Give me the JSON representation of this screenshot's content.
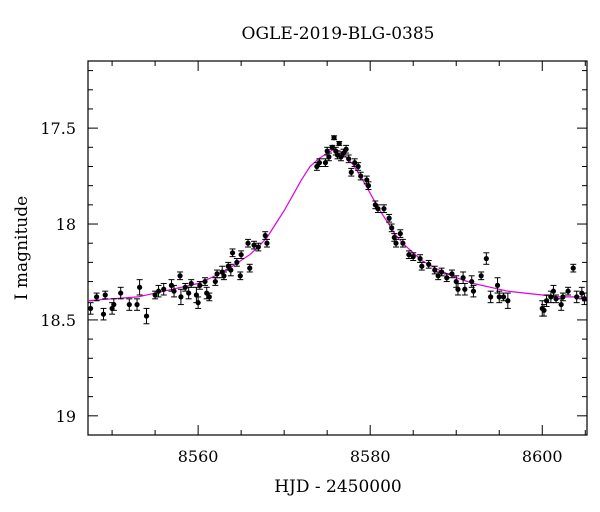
{
  "chart_data": {
    "type": "scatter",
    "title": "OGLE-2019-BLG-0385",
    "xlabel": "HJD - 2450000",
    "ylabel": "I magnitude",
    "xlim": [
      8547.2,
      8605.2
    ],
    "ylim": [
      19.1,
      17.15
    ],
    "y_inverted": true,
    "x_ticks": [
      8560,
      8580,
      8600
    ],
    "x_tick_labels": [
      "8560",
      "8580",
      "8600"
    ],
    "y_ticks": [
      17.5,
      18,
      18.5,
      19
    ],
    "y_tick_labels": [
      "17.5",
      "18",
      "18.5",
      "19"
    ],
    "grid": false,
    "legend": "none",
    "colors": {
      "data": "#000000",
      "model": "#e000e0"
    },
    "series": [
      {
        "kind": "points_with_errorbars",
        "points": [
          [
            8547.5,
            18.44,
            0.03
          ],
          [
            8548.2,
            18.38,
            0.02
          ],
          [
            8549.0,
            18.47,
            0.03
          ],
          [
            8549.2,
            18.37,
            0.02
          ],
          [
            8550.0,
            18.44,
            0.03
          ],
          [
            8550.2,
            18.42,
            0.03
          ],
          [
            8551.0,
            18.36,
            0.03
          ],
          [
            8552.0,
            18.42,
            0.03
          ],
          [
            8552.9,
            18.42,
            0.03
          ],
          [
            8553.2,
            18.33,
            0.04
          ],
          [
            8554.0,
            18.48,
            0.04
          ],
          [
            8555.0,
            18.37,
            0.02
          ],
          [
            8555.4,
            18.35,
            0.03
          ],
          [
            8556.0,
            18.34,
            0.03
          ],
          [
            8556.9,
            18.32,
            0.03
          ],
          [
            8557.2,
            18.35,
            0.03
          ],
          [
            8557.9,
            18.27,
            0.02
          ],
          [
            8558.0,
            18.38,
            0.04
          ],
          [
            8558.5,
            18.33,
            0.02
          ],
          [
            8558.9,
            18.36,
            0.03
          ],
          [
            8559.2,
            18.31,
            0.02
          ],
          [
            8559.8,
            18.37,
            0.04
          ],
          [
            8560.0,
            18.41,
            0.03
          ],
          [
            8560.2,
            18.32,
            0.02
          ],
          [
            8560.8,
            18.3,
            0.02
          ],
          [
            8561.0,
            18.36,
            0.03
          ],
          [
            8561.3,
            18.38,
            0.02
          ],
          [
            8562.0,
            18.3,
            0.02
          ],
          [
            8562.2,
            18.26,
            0.02
          ],
          [
            8562.8,
            18.25,
            0.03
          ],
          [
            8563.0,
            18.27,
            0.02
          ],
          [
            8563.5,
            18.22,
            0.02
          ],
          [
            8563.8,
            18.24,
            0.03
          ],
          [
            8564.0,
            18.15,
            0.02
          ],
          [
            8564.5,
            18.2,
            0.02
          ],
          [
            8564.9,
            18.27,
            0.02
          ],
          [
            8565.0,
            18.16,
            0.02
          ],
          [
            8565.8,
            18.1,
            0.02
          ],
          [
            8566.0,
            18.23,
            0.02
          ],
          [
            8566.5,
            18.11,
            0.02
          ],
          [
            8567.0,
            18.12,
            0.02
          ],
          [
            8567.8,
            18.06,
            0.02
          ],
          [
            8568.0,
            18.1,
            0.02
          ],
          [
            8573.8,
            17.7,
            0.02
          ],
          [
            8574.1,
            17.68,
            0.02
          ],
          [
            8574.8,
            17.68,
            0.02
          ],
          [
            8575.0,
            17.62,
            0.02
          ],
          [
            8575.2,
            17.65,
            0.02
          ],
          [
            8575.6,
            17.6,
            0.01
          ],
          [
            8575.8,
            17.55,
            0.01
          ],
          [
            8576.0,
            17.62,
            0.02
          ],
          [
            8576.2,
            17.64,
            0.02
          ],
          [
            8576.4,
            17.58,
            0.01
          ],
          [
            8576.6,
            17.65,
            0.02
          ],
          [
            8576.9,
            17.63,
            0.02
          ],
          [
            8577.2,
            17.61,
            0.02
          ],
          [
            8577.5,
            17.66,
            0.02
          ],
          [
            8577.8,
            17.73,
            0.02
          ],
          [
            8578.2,
            17.68,
            0.02
          ],
          [
            8578.6,
            17.7,
            0.02
          ],
          [
            8578.9,
            17.75,
            0.02
          ],
          [
            8579.6,
            17.77,
            0.02
          ],
          [
            8579.8,
            17.8,
            0.02
          ],
          [
            8580.6,
            17.9,
            0.02
          ],
          [
            8580.9,
            17.92,
            0.02
          ],
          [
            8581.6,
            17.92,
            0.02
          ],
          [
            8582.2,
            17.97,
            0.02
          ],
          [
            8582.5,
            18.02,
            0.02
          ],
          [
            8582.8,
            18.07,
            0.02
          ],
          [
            8583.0,
            18.1,
            0.02
          ],
          [
            8583.5,
            18.05,
            0.02
          ],
          [
            8583.8,
            18.1,
            0.02
          ],
          [
            8584.5,
            18.16,
            0.02
          ],
          [
            8585.0,
            18.17,
            0.02
          ],
          [
            8585.8,
            18.18,
            0.02
          ],
          [
            8586.0,
            18.22,
            0.02
          ],
          [
            8586.8,
            18.21,
            0.02
          ],
          [
            8587.5,
            18.24,
            0.02
          ],
          [
            8587.9,
            18.27,
            0.02
          ],
          [
            8588.3,
            18.25,
            0.02
          ],
          [
            8588.9,
            18.28,
            0.02
          ],
          [
            8589.5,
            18.26,
            0.02
          ],
          [
            8590.0,
            18.3,
            0.03
          ],
          [
            8590.2,
            18.34,
            0.03
          ],
          [
            8590.8,
            18.28,
            0.03
          ],
          [
            8591.0,
            18.34,
            0.03
          ],
          [
            8591.8,
            18.3,
            0.03
          ],
          [
            8592.0,
            18.35,
            0.03
          ],
          [
            8592.9,
            18.27,
            0.02
          ],
          [
            8593.5,
            18.18,
            0.03
          ],
          [
            8594.0,
            18.38,
            0.03
          ],
          [
            8594.8,
            18.32,
            0.04
          ],
          [
            8595.0,
            18.38,
            0.03
          ],
          [
            8595.5,
            18.38,
            0.02
          ],
          [
            8596.0,
            18.4,
            0.04
          ],
          [
            8600.0,
            18.44,
            0.04
          ],
          [
            8600.2,
            18.45,
            0.03
          ],
          [
            8600.5,
            18.4,
            0.03
          ],
          [
            8601.0,
            18.38,
            0.03
          ],
          [
            8601.3,
            18.35,
            0.03
          ],
          [
            8601.6,
            18.39,
            0.02
          ],
          [
            8602.2,
            18.42,
            0.03
          ],
          [
            8602.4,
            18.38,
            0.02
          ],
          [
            8603.0,
            18.35,
            0.02
          ],
          [
            8603.6,
            18.23,
            0.02
          ],
          [
            8604.0,
            18.38,
            0.03
          ],
          [
            8604.6,
            18.36,
            0.03
          ],
          [
            8604.9,
            18.39,
            0.03
          ]
        ]
      },
      {
        "kind": "model_curve",
        "points": [
          [
            8547.2,
            18.4
          ],
          [
            8550,
            18.39
          ],
          [
            8553,
            18.38
          ],
          [
            8556,
            18.35
          ],
          [
            8558,
            18.33
          ],
          [
            8560,
            18.31
          ],
          [
            8562,
            18.27
          ],
          [
            8564,
            18.22
          ],
          [
            8566,
            18.16
          ],
          [
            8567,
            18.12
          ],
          [
            8568,
            18.07
          ],
          [
            8569,
            18.0
          ],
          [
            8570,
            17.93
          ],
          [
            8571,
            17.85
          ],
          [
            8572,
            17.77
          ],
          [
            8573,
            17.7
          ],
          [
            8574,
            17.66
          ],
          [
            8575,
            17.63
          ],
          [
            8575.8,
            17.61
          ],
          [
            8576.5,
            17.62
          ],
          [
            8577,
            17.64
          ],
          [
            8578,
            17.69
          ],
          [
            8579,
            17.76
          ],
          [
            8580,
            17.84
          ],
          [
            8581,
            17.92
          ],
          [
            8582,
            17.99
          ],
          [
            8583,
            18.06
          ],
          [
            8584,
            18.11
          ],
          [
            8585,
            18.15
          ],
          [
            8586,
            18.19
          ],
          [
            8588,
            18.24
          ],
          [
            8590,
            18.28
          ],
          [
            8592,
            18.31
          ],
          [
            8594,
            18.33
          ],
          [
            8596,
            18.35
          ],
          [
            8598,
            18.36
          ],
          [
            8600,
            18.37
          ],
          [
            8602,
            18.38
          ],
          [
            8605.2,
            18.38
          ]
        ]
      }
    ]
  }
}
